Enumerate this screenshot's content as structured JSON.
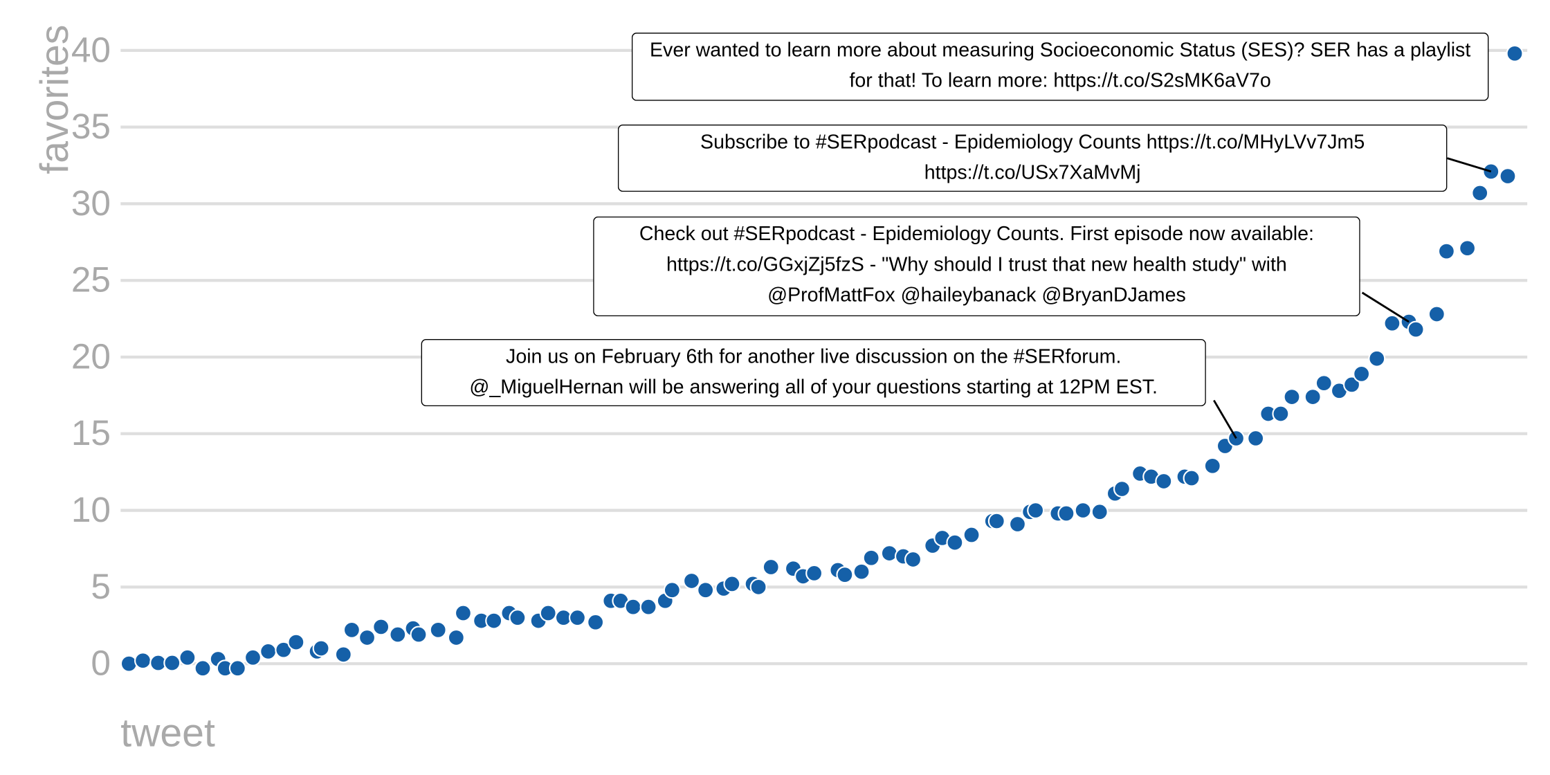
{
  "chart_data": {
    "type": "scatter",
    "x_label": "tweet",
    "y_label": "favorites",
    "xlim": [
      0,
      101
    ],
    "ylim": [
      -1.2,
      42
    ],
    "yticks": [
      0,
      5,
      10,
      15,
      20,
      25,
      30,
      35,
      40
    ],
    "grid": true,
    "color": "#1560a8",
    "x": [
      0.6,
      1.6,
      2.7,
      3.7,
      4.8,
      5.9,
      7.0,
      7.5,
      8.4,
      9.5,
      10.6,
      11.7,
      12.6,
      14.1,
      14.4,
      16.0,
      16.6,
      17.7,
      18.7,
      19.9,
      21.0,
      21.4,
      22.8,
      24.1,
      24.6,
      25.9,
      26.8,
      27.9,
      28.5,
      30.0,
      30.7,
      31.8,
      32.8,
      34.1,
      35.2,
      35.9,
      36.8,
      37.9,
      39.1,
      39.6,
      41.0,
      42.0,
      43.3,
      43.9,
      45.4,
      45.8,
      46.7,
      48.3,
      49.0,
      49.8,
      51.5,
      52.0,
      53.2,
      53.9,
      55.2,
      56.2,
      56.9,
      58.3,
      59.0,
      59.9,
      61.1,
      62.6,
      62.9,
      64.4,
      65.3,
      65.7,
      67.3,
      67.9,
      69.1,
      70.3,
      71.4,
      71.9,
      73.2,
      74.0,
      74.9,
      76.4,
      76.9,
      78.4,
      79.3,
      80.1,
      81.5,
      82.4,
      83.3,
      84.1,
      85.6,
      86.4,
      87.5,
      88.4,
      89.1,
      90.2,
      91.3,
      92.5,
      93.0,
      94.5,
      95.2,
      96.7,
      97.6,
      98.4,
      99.6,
      100.1
    ],
    "values": [
      0,
      0.2,
      0.05,
      0.05,
      0.4,
      -0.3,
      0.3,
      -0.3,
      -0.3,
      0.4,
      0.8,
      0.9,
      1.4,
      0.8,
      1.0,
      0.6,
      2.2,
      1.7,
      2.4,
      1.9,
      2.3,
      1.9,
      2.2,
      1.7,
      3.3,
      2.8,
      2.8,
      3.3,
      3.0,
      2.8,
      3.3,
      3.0,
      3.0,
      2.7,
      4.1,
      4.1,
      3.7,
      3.7,
      4.1,
      4.8,
      5.4,
      4.8,
      4.9,
      5.2,
      5.2,
      5.0,
      6.3,
      6.2,
      5.7,
      5.9,
      6.1,
      5.8,
      6.0,
      6.9,
      7.2,
      7.0,
      6.8,
      7.7,
      8.2,
      7.9,
      8.4,
      9.3,
      9.3,
      9.1,
      9.9,
      10.0,
      9.8,
      9.8,
      10.0,
      9.9,
      11.1,
      11.4,
      12.4,
      12.2,
      11.9,
      12.2,
      12.1,
      12.9,
      14.2,
      14.7,
      14.7,
      16.3,
      16.3,
      17.4,
      17.4,
      18.3,
      17.8,
      18.2,
      18.9,
      19.9,
      22.2,
      22.3,
      21.8,
      22.8,
      26.9,
      27.1,
      30.7,
      32.1,
      31.8,
      39.8
    ],
    "labels": [
      null,
      null,
      null,
      null,
      null,
      null,
      null,
      null,
      null,
      null,
      null,
      null,
      null,
      null,
      null,
      null,
      null,
      null,
      null,
      null,
      null,
      null,
      null,
      null,
      null,
      null,
      null,
      null,
      null,
      null,
      null,
      null,
      null,
      null,
      null,
      null,
      null,
      null,
      null,
      null,
      null,
      null,
      null,
      null,
      null,
      null,
      null,
      null,
      null,
      null,
      null,
      null,
      null,
      null,
      null,
      null,
      null,
      null,
      null,
      null,
      null,
      null,
      null,
      null,
      null,
      null,
      null,
      null,
      null,
      null,
      null,
      null,
      null,
      null,
      null,
      null,
      null,
      null,
      null,
      "Join us on February 6th for another live discussion on the #SERforum. @_MiguelHernan will be answering all of your questions starting at 12PM EST.",
      null,
      null,
      null,
      null,
      null,
      null,
      null,
      null,
      null,
      null,
      null,
      "Check out #SERpodcast - Epidemiology Counts. First episode now available: https://t.co/GGxjZj5fzS - \"Why should I trust that new health study\" with @ProfMattFox @haileybanack @BryanDJames",
      null,
      null,
      null,
      null,
      null,
      "Subscribe to #SERpodcast - Epidemiology Counts https://t.co/MHyLVv7Jm5 https://t.co/USx7XaMvMj",
      null,
      "Ever wanted to learn more about measuring Socioeconomic Status (SES)? SER has a playlist for that! To learn more: https://t.co/S2sMK6aV7o"
    ]
  }
}
